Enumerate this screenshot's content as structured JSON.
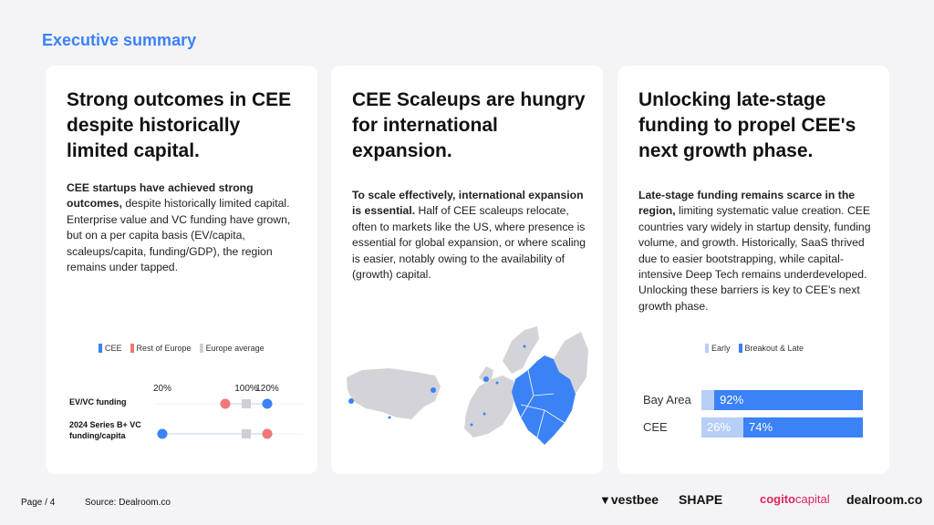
{
  "header": {
    "title": "Executive summary"
  },
  "cards": [
    {
      "title": "Strong outcomes in CEE despite historically limited capital.",
      "body_bold": "CEE startups have achieved strong outcomes,",
      "body_rest": " despite historically limited capital. Enterprise value and VC funding have grown, but on a per capita basis (EV/capita, scaleups/capita, funding/GDP), the region remains under tapped."
    },
    {
      "title": "CEE Scaleups are hungry for international expansion.",
      "body_bold": "To scale effectively, international expansion is essential.",
      "body_rest": " Half of CEE scaleups relocate, often to markets like the US, where presence is essential for global expansion, or where scaling is easier, notably owing to the availability of (growth) capital."
    },
    {
      "title": "Unlocking late-stage funding to propel CEE's next growth phase.",
      "body_bold": "Late-stage funding remains scarce in the region,",
      "body_rest": " limiting systematic value creation. CEE countries vary widely in startup density, funding volume, and growth. Historically, SaaS thrived due to easier bootstrapping, while capital-intensive Deep Tech remains underdeveloped. Unlocking these barriers is key to CEE's next growth phase."
    }
  ],
  "chart_data": [
    {
      "type": "scatter",
      "subtype": "dumbbell",
      "legend": [
        "CEE",
        "Rest of Europe",
        "Europe average"
      ],
      "colors": {
        "CEE": "#3b82f6",
        "Rest of Europe": "#f07878",
        "Europe average": "#cfcfd4"
      },
      "tick_labels": [
        "20%",
        "100%",
        "120%"
      ],
      "tick_values": [
        20,
        100,
        120
      ],
      "rows": [
        {
          "label": "EV/VC funding",
          "CEE": 120,
          "Rest of Europe": 80,
          "Europe average": 100
        },
        {
          "label": "2024 Series B+ VC funding/capita",
          "CEE": 20,
          "Rest of Europe": 120,
          "Europe average": 100
        }
      ]
    },
    {
      "type": "bar",
      "subtype": "stacked-horizontal-100",
      "legend": [
        "Early",
        "Breakout & Late"
      ],
      "colors": {
        "Early": "#b7cff7",
        "Breakout & Late": "#3b82f6"
      },
      "categories": [
        "Bay Area",
        "CEE"
      ],
      "series": [
        {
          "name": "Early",
          "values": [
            8,
            26
          ],
          "labels": [
            "",
            "26%"
          ]
        },
        {
          "name": "Breakout & Late",
          "values": [
            92,
            74
          ],
          "labels": [
            "92%",
            "74%"
          ]
        }
      ]
    }
  ],
  "footer": {
    "page": "Page / 4",
    "source": "Source:  Dealroom.co",
    "logos": [
      "vestbee",
      "SHAPE",
      "cogito",
      "capital",
      "dealroom.co"
    ]
  }
}
